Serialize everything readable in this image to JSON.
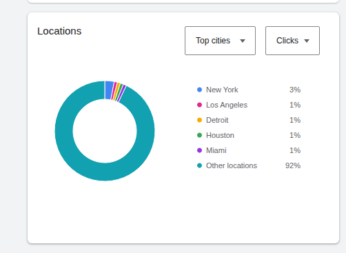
{
  "chart_data": {
    "type": "pie",
    "title": "Locations",
    "annotations": [
      "Top cities",
      "Clicks"
    ],
    "categories": [
      "New York",
      "Los Angeles",
      "Detroit",
      "Houston",
      "Miami",
      "Other locations"
    ],
    "values": [
      3,
      1,
      1,
      1,
      1,
      92
    ],
    "value_labels": [
      "3%",
      "1%",
      "1%",
      "1%",
      "1%",
      "92%"
    ],
    "colors": [
      "#4285f4",
      "#e52592",
      "#f9ab00",
      "#34a853",
      "#9334e6",
      "#12a1b0"
    ],
    "legend": "right"
  }
}
